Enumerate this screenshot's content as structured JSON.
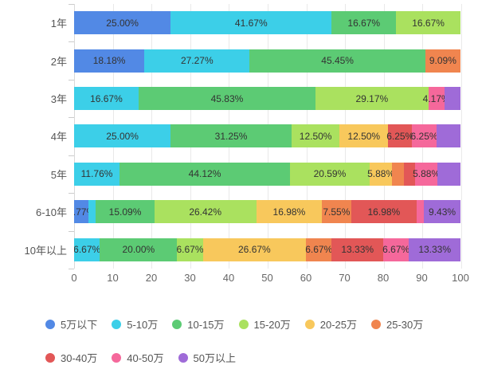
{
  "chart_data": {
    "type": "bar",
    "variant": "horizontal-stacked-percent",
    "title": "",
    "grid": true,
    "legend_position": "bottom",
    "categories": [
      "1年",
      "2年",
      "3年",
      "4年",
      "5年",
      "6-10年",
      "10年以上"
    ],
    "series": [
      {
        "name": "5万以下",
        "color": "#5289E5",
        "values": [
          25.0,
          18.18,
          0,
          0,
          0,
          3.77,
          0
        ]
      },
      {
        "name": "5-10万",
        "color": "#3CCFE8",
        "values": [
          41.67,
          27.27,
          16.67,
          25.0,
          11.76,
          1.89,
          6.67
        ]
      },
      {
        "name": "10-15万",
        "color": "#5CCB74",
        "values": [
          16.67,
          45.45,
          45.83,
          31.25,
          44.12,
          15.09,
          20.0
        ]
      },
      {
        "name": "15-20万",
        "color": "#AAE15F",
        "values": [
          16.67,
          0,
          29.17,
          12.5,
          20.59,
          26.42,
          6.67
        ]
      },
      {
        "name": "20-25万",
        "color": "#F8C85C",
        "values": [
          0,
          0,
          0,
          12.5,
          5.88,
          16.98,
          26.67
        ]
      },
      {
        "name": "25-30万",
        "color": "#F0854F",
        "values": [
          0,
          9.09,
          0,
          0,
          2.94,
          7.55,
          6.67
        ]
      },
      {
        "name": "30-40万",
        "color": "#E25757",
        "values": [
          0,
          0,
          0,
          6.25,
          2.94,
          16.98,
          13.33
        ]
      },
      {
        "name": "40-50万",
        "color": "#F5689B",
        "values": [
          0,
          0,
          4.17,
          6.25,
          5.88,
          1.89,
          6.67
        ]
      },
      {
        "name": "50万以上",
        "color": "#9F6BD8",
        "values": [
          0,
          0,
          4.17,
          6.25,
          5.88,
          9.43,
          13.33
        ]
      }
    ],
    "label_format": "percent-2dp",
    "hidden_labels": [
      [
        "3年",
        "50万以上"
      ],
      [
        "4年",
        "50万以上"
      ],
      [
        "5年",
        "25-30万"
      ],
      [
        "5年",
        "30-40万"
      ],
      [
        "5年",
        "50万以上"
      ],
      [
        "6-10年",
        "5-10万"
      ],
      [
        "6-10年",
        "40-50万"
      ]
    ],
    "xlabel": "",
    "ylabel": "",
    "x_axis": {
      "min": 0,
      "max": 100,
      "ticks": [
        "0",
        "10",
        "20",
        "30",
        "40",
        "50",
        "60",
        "70",
        "80",
        "90",
        "100"
      ]
    },
    "legend_rows": [
      [
        "5万以下",
        "5-10万",
        "10-15万",
        "15-20万",
        "20-25万",
        "25-30万"
      ],
      [
        "30-40万",
        "40-50万",
        "50万以上"
      ]
    ]
  }
}
